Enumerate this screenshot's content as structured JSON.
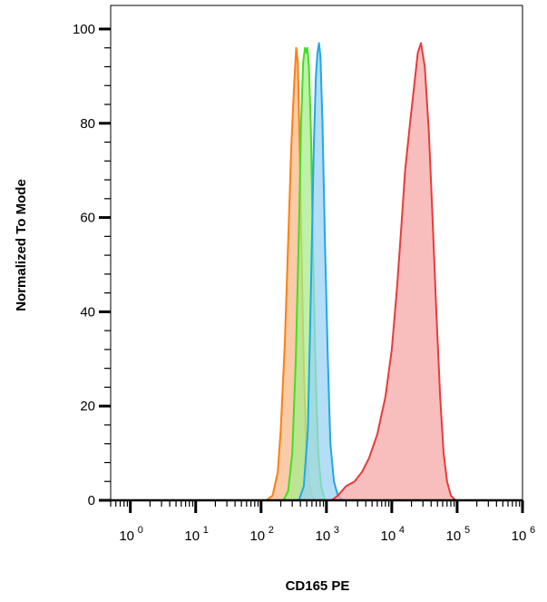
{
  "chart_data": {
    "type": "area",
    "xlabel": "CD165 PE",
    "ylabel": "Normalized To Mode",
    "x_scale": "log",
    "xlim": [
      0.5,
      1000000
    ],
    "ylim": [
      0,
      105
    ],
    "x_tick_values": [
      1,
      10,
      100,
      1000,
      10000,
      100000,
      1000000
    ],
    "x_tick_labels": [
      {
        "base": "10",
        "exp": "0"
      },
      {
        "base": "10",
        "exp": "1"
      },
      {
        "base": "10",
        "exp": "2"
      },
      {
        "base": "10",
        "exp": "3"
      },
      {
        "base": "10",
        "exp": "4"
      },
      {
        "base": "10",
        "exp": "5"
      },
      {
        "base": "10",
        "exp": "6"
      }
    ],
    "y_ticks": [
      0,
      20,
      40,
      60,
      80,
      100
    ],
    "grid": false,
    "series": [
      {
        "color": "#ff7f0e",
        "fill": "#f8b98a",
        "points": [
          [
            0.5,
            0
          ],
          [
            120,
            0
          ],
          [
            150,
            1
          ],
          [
            180,
            6
          ],
          [
            200,
            15
          ],
          [
            230,
            33
          ],
          [
            260,
            55
          ],
          [
            290,
            75
          ],
          [
            320,
            88
          ],
          [
            345,
            96
          ],
          [
            365,
            93
          ],
          [
            390,
            75
          ],
          [
            420,
            50
          ],
          [
            450,
            28
          ],
          [
            490,
            12
          ],
          [
            540,
            4
          ],
          [
            600,
            1
          ],
          [
            700,
            0
          ],
          [
            1000000,
            0
          ]
        ]
      },
      {
        "color": "#44dd22",
        "fill": "#a8ec8c",
        "points": [
          [
            0.5,
            0
          ],
          [
            220,
            0
          ],
          [
            260,
            2
          ],
          [
            300,
            10
          ],
          [
            340,
            30
          ],
          [
            380,
            58
          ],
          [
            410,
            80
          ],
          [
            440,
            93
          ],
          [
            470,
            96
          ],
          [
            490,
            95
          ],
          [
            510,
            96
          ],
          [
            540,
            92
          ],
          [
            580,
            78
          ],
          [
            620,
            55
          ],
          [
            680,
            28
          ],
          [
            750,
            10
          ],
          [
            830,
            3
          ],
          [
            950,
            0
          ],
          [
            1000000,
            0
          ]
        ]
      },
      {
        "color": "#22a7e8",
        "fill": "#9ad3f3",
        "points": [
          [
            0.5,
            0
          ],
          [
            380,
            0
          ],
          [
            450,
            3
          ],
          [
            520,
            15
          ],
          [
            580,
            45
          ],
          [
            640,
            75
          ],
          [
            690,
            90
          ],
          [
            730,
            95
          ],
          [
            770,
            97
          ],
          [
            810,
            94
          ],
          [
            870,
            80
          ],
          [
            950,
            55
          ],
          [
            1050,
            30
          ],
          [
            1150,
            12
          ],
          [
            1300,
            4
          ],
          [
            1500,
            1
          ],
          [
            1800,
            0
          ],
          [
            1000000,
            0
          ]
        ]
      },
      {
        "color": "#e83b3b",
        "fill": "#f6a8a8",
        "points": [
          [
            0.5,
            0
          ],
          [
            1200,
            0
          ],
          [
            1500,
            1
          ],
          [
            2000,
            3
          ],
          [
            2700,
            4
          ],
          [
            3500,
            6
          ],
          [
            4500,
            9
          ],
          [
            6000,
            14
          ],
          [
            8000,
            22
          ],
          [
            10000,
            32
          ],
          [
            12000,
            45
          ],
          [
            14000,
            58
          ],
          [
            16000,
            70
          ],
          [
            19000,
            80
          ],
          [
            22000,
            88
          ],
          [
            25000,
            95
          ],
          [
            28000,
            97
          ],
          [
            32000,
            92
          ],
          [
            37000,
            78
          ],
          [
            42000,
            60
          ],
          [
            48000,
            40
          ],
          [
            55000,
            22
          ],
          [
            62000,
            10
          ],
          [
            70000,
            4
          ],
          [
            80000,
            1
          ],
          [
            95000,
            0
          ],
          [
            1000000,
            0
          ]
        ]
      }
    ]
  }
}
